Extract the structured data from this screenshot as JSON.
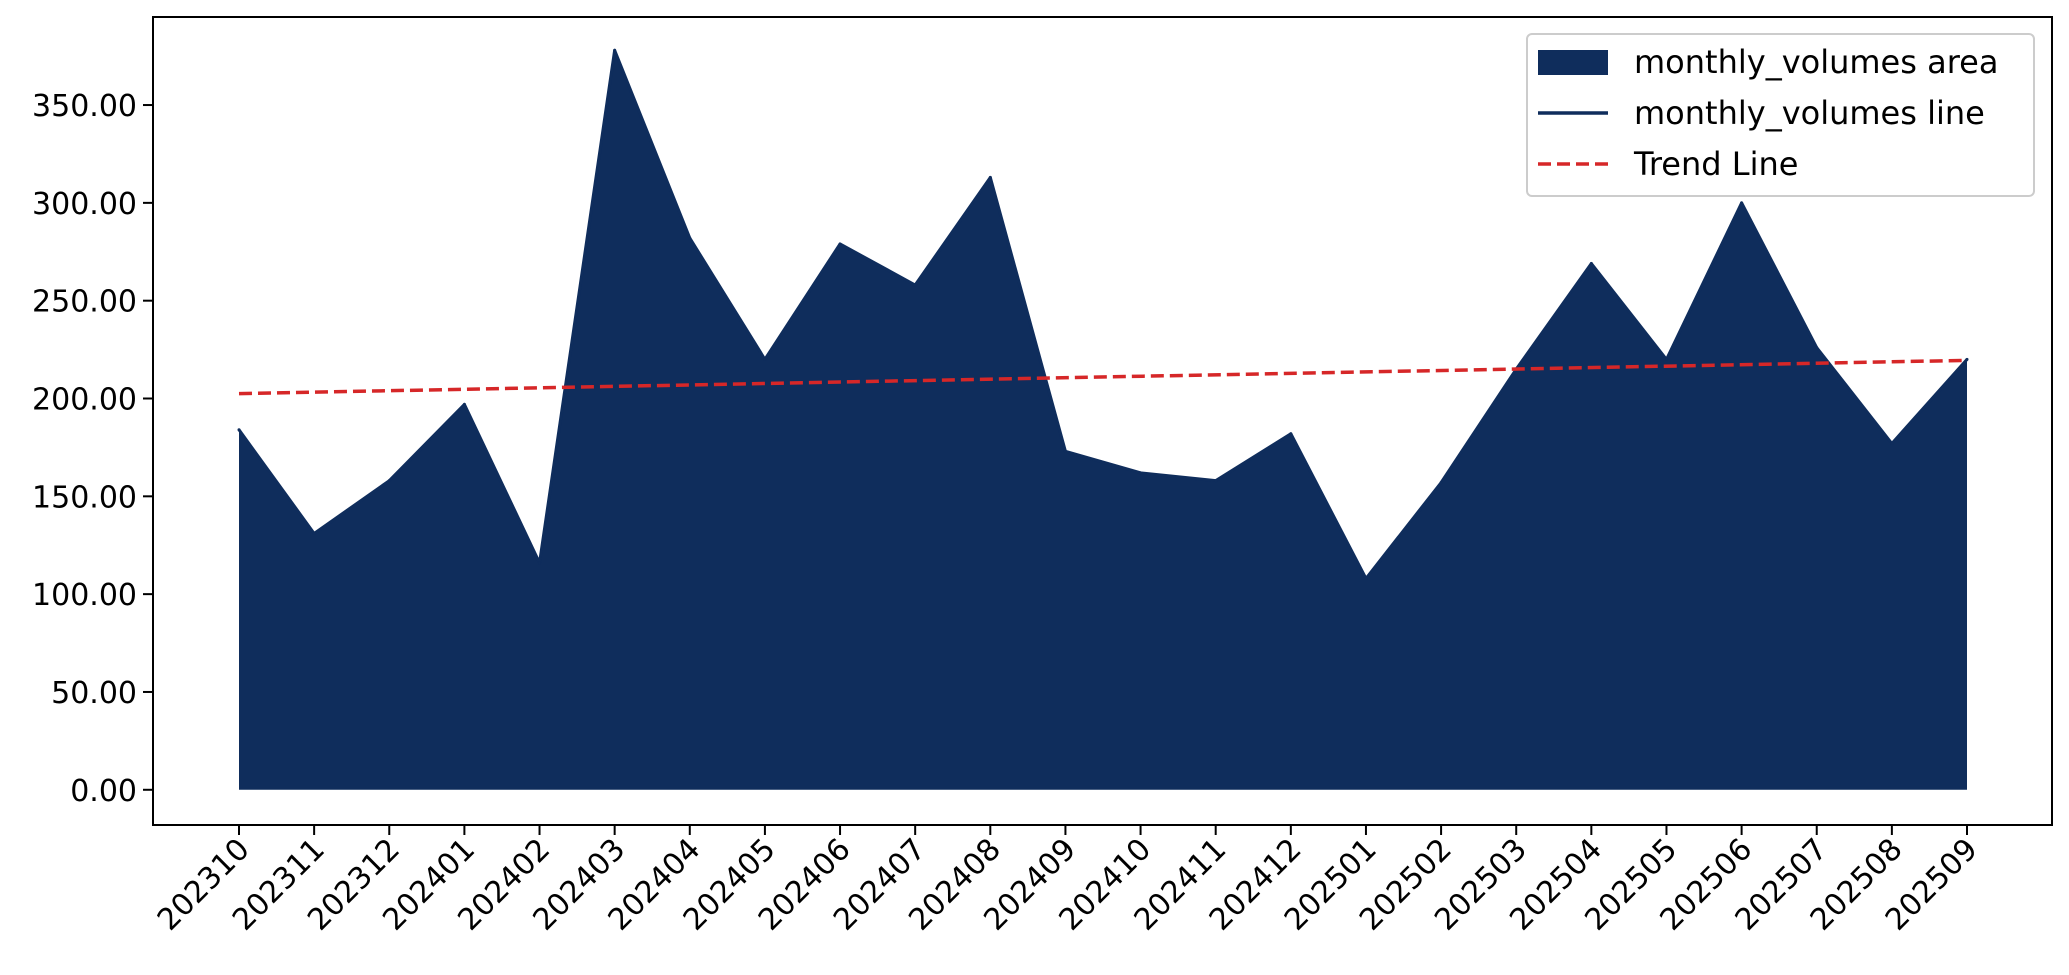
{
  "chart_data": {
    "type": "area",
    "categories": [
      "202310",
      "202311",
      "202312",
      "202401",
      "202402",
      "202403",
      "202404",
      "202405",
      "202406",
      "202407",
      "202408",
      "202409",
      "202410",
      "202411",
      "202412",
      "202501",
      "202502",
      "202503",
      "202504",
      "202505",
      "202506",
      "202507",
      "202508",
      "202509"
    ],
    "series": [
      {
        "name": "monthly_volumes area",
        "kind": "area",
        "color": "#0f2d5c",
        "values": [
          184,
          131,
          158,
          197,
          116,
          378,
          282,
          220,
          279,
          258,
          313,
          173,
          162,
          158,
          182,
          108,
          157,
          215,
          269,
          220,
          300,
          226,
          177,
          220
        ]
      },
      {
        "name": "monthly_volumes line",
        "kind": "line",
        "color": "#0f2d5c",
        "values": [
          184,
          131,
          158,
          197,
          116,
          378,
          282,
          220,
          279,
          258,
          313,
          173,
          162,
          158,
          182,
          108,
          157,
          215,
          269,
          220,
          300,
          226,
          177,
          220
        ]
      },
      {
        "name": "Trend Line",
        "kind": "trend",
        "color": "#d62728",
        "start": 202.5,
        "end": 219.5
      }
    ],
    "yticks": [
      "0.00",
      "50.00",
      "100.00",
      "150.00",
      "200.00",
      "250.00",
      "300.00",
      "350.00"
    ],
    "ylim": [
      -18,
      395
    ],
    "grid": false,
    "legend_position": "top-right",
    "title": "",
    "xlabel": "",
    "ylabel": ""
  }
}
